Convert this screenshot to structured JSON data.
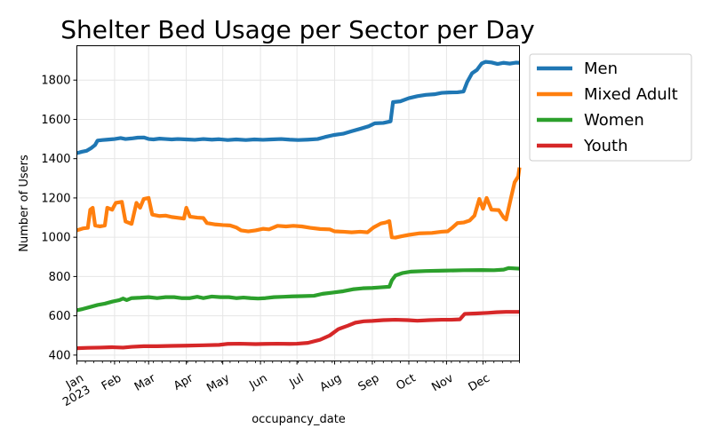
{
  "chart_data": {
    "type": "line",
    "title": "Shelter Bed Usage per Sector per Day",
    "xlabel": "occupancy_date",
    "ylabel": "Number of Users",
    "ylim": [
      370,
      1975
    ],
    "xlim": [
      "2023-01-01",
      "2023-12-31"
    ],
    "yticks": [
      400,
      600,
      800,
      1000,
      1200,
      1400,
      1600,
      1800
    ],
    "xticks": [
      {
        "date": "2023-01-01",
        "label": "Jan",
        "label2": "2023"
      },
      {
        "date": "2023-02-01",
        "label": "Feb"
      },
      {
        "date": "2023-03-01",
        "label": "Mar"
      },
      {
        "date": "2023-04-01",
        "label": "Apr"
      },
      {
        "date": "2023-05-01",
        "label": "May"
      },
      {
        "date": "2023-06-01",
        "label": "Jun"
      },
      {
        "date": "2023-07-01",
        "label": "Jul"
      },
      {
        "date": "2023-08-01",
        "label": "Aug"
      },
      {
        "date": "2023-09-01",
        "label": "Sep"
      },
      {
        "date": "2023-10-01",
        "label": "Oct"
      },
      {
        "date": "2023-11-01",
        "label": "Nov"
      },
      {
        "date": "2023-12-01",
        "label": "Dec"
      }
    ],
    "grid": true,
    "legend_position": "outside-right-top",
    "series": [
      {
        "name": "Men",
        "color": "#1f77b4",
        "points": [
          [
            "2023-01-01",
            1428
          ],
          [
            "2023-01-05",
            1435
          ],
          [
            "2023-01-09",
            1440
          ],
          [
            "2023-01-13",
            1455
          ],
          [
            "2023-01-16",
            1470
          ],
          [
            "2023-01-18",
            1492
          ],
          [
            "2023-01-22",
            1495
          ],
          [
            "2023-01-26",
            1497
          ],
          [
            "2023-02-01",
            1500
          ],
          [
            "2023-02-06",
            1505
          ],
          [
            "2023-02-10",
            1500
          ],
          [
            "2023-02-15",
            1503
          ],
          [
            "2023-02-20",
            1507
          ],
          [
            "2023-02-25",
            1508
          ],
          [
            "2023-03-01",
            1500
          ],
          [
            "2023-03-05",
            1498
          ],
          [
            "2023-03-10",
            1502
          ],
          [
            "2023-03-15",
            1500
          ],
          [
            "2023-03-20",
            1498
          ],
          [
            "2023-03-25",
            1500
          ],
          [
            "2023-04-01",
            1498
          ],
          [
            "2023-04-08",
            1496
          ],
          [
            "2023-04-15",
            1500
          ],
          [
            "2023-04-22",
            1497
          ],
          [
            "2023-04-28",
            1499
          ],
          [
            "2023-05-05",
            1495
          ],
          [
            "2023-05-12",
            1498
          ],
          [
            "2023-05-20",
            1495
          ],
          [
            "2023-05-27",
            1498
          ],
          [
            "2023-06-03",
            1496
          ],
          [
            "2023-06-10",
            1498
          ],
          [
            "2023-06-18",
            1500
          ],
          [
            "2023-06-25",
            1497
          ],
          [
            "2023-07-02",
            1495
          ],
          [
            "2023-07-10",
            1497
          ],
          [
            "2023-07-18",
            1500
          ],
          [
            "2023-07-24",
            1510
          ],
          [
            "2023-07-31",
            1520
          ],
          [
            "2023-08-08",
            1527
          ],
          [
            "2023-08-15",
            1540
          ],
          [
            "2023-08-22",
            1552
          ],
          [
            "2023-08-29",
            1565
          ],
          [
            "2023-09-03",
            1580
          ],
          [
            "2023-09-10",
            1582
          ],
          [
            "2023-09-16",
            1590
          ],
          [
            "2023-09-18",
            1688
          ],
          [
            "2023-09-24",
            1692
          ],
          [
            "2023-10-01",
            1708
          ],
          [
            "2023-10-08",
            1718
          ],
          [
            "2023-10-15",
            1725
          ],
          [
            "2023-10-22",
            1728
          ],
          [
            "2023-10-28",
            1735
          ],
          [
            "2023-11-03",
            1737
          ],
          [
            "2023-11-10",
            1738
          ],
          [
            "2023-11-15",
            1742
          ],
          [
            "2023-11-18",
            1790
          ],
          [
            "2023-11-22",
            1835
          ],
          [
            "2023-11-26",
            1852
          ],
          [
            "2023-11-30",
            1885
          ],
          [
            "2023-12-03",
            1893
          ],
          [
            "2023-12-08",
            1890
          ],
          [
            "2023-12-13",
            1882
          ],
          [
            "2023-12-18",
            1888
          ],
          [
            "2023-12-23",
            1884
          ],
          [
            "2023-12-28",
            1889
          ],
          [
            "2023-12-31",
            1888
          ]
        ]
      },
      {
        "name": "Mixed Adult",
        "color": "#ff7f0e",
        "points": [
          [
            "2023-01-01",
            1035
          ],
          [
            "2023-01-06",
            1045
          ],
          [
            "2023-01-10",
            1048
          ],
          [
            "2023-01-12",
            1140
          ],
          [
            "2023-01-14",
            1150
          ],
          [
            "2023-01-16",
            1060
          ],
          [
            "2023-01-20",
            1055
          ],
          [
            "2023-01-24",
            1060
          ],
          [
            "2023-01-26",
            1150
          ],
          [
            "2023-01-30",
            1140
          ],
          [
            "2023-02-02",
            1175
          ],
          [
            "2023-02-07",
            1180
          ],
          [
            "2023-02-10",
            1080
          ],
          [
            "2023-02-15",
            1068
          ],
          [
            "2023-02-19",
            1175
          ],
          [
            "2023-02-22",
            1150
          ],
          [
            "2023-02-25",
            1195
          ],
          [
            "2023-03-01",
            1200
          ],
          [
            "2023-03-04",
            1115
          ],
          [
            "2023-03-10",
            1108
          ],
          [
            "2023-03-15",
            1110
          ],
          [
            "2023-03-20",
            1103
          ],
          [
            "2023-03-26",
            1098
          ],
          [
            "2023-03-30",
            1095
          ],
          [
            "2023-04-01",
            1150
          ],
          [
            "2023-04-04",
            1105
          ],
          [
            "2023-04-10",
            1100
          ],
          [
            "2023-04-15",
            1098
          ],
          [
            "2023-04-18",
            1072
          ],
          [
            "2023-04-25",
            1065
          ],
          [
            "2023-05-01",
            1062
          ],
          [
            "2023-05-07",
            1060
          ],
          [
            "2023-05-12",
            1050
          ],
          [
            "2023-05-16",
            1035
          ],
          [
            "2023-05-22",
            1030
          ],
          [
            "2023-05-28",
            1035
          ],
          [
            "2023-06-03",
            1043
          ],
          [
            "2023-06-08",
            1040
          ],
          [
            "2023-06-12",
            1050
          ],
          [
            "2023-06-15",
            1058
          ],
          [
            "2023-06-22",
            1055
          ],
          [
            "2023-06-28",
            1058
          ],
          [
            "2023-07-05",
            1055
          ],
          [
            "2023-07-12",
            1048
          ],
          [
            "2023-07-20",
            1042
          ],
          [
            "2023-07-28",
            1040
          ],
          [
            "2023-08-01",
            1030
          ],
          [
            "2023-08-08",
            1028
          ],
          [
            "2023-08-15",
            1025
          ],
          [
            "2023-08-22",
            1028
          ],
          [
            "2023-08-28",
            1025
          ],
          [
            "2023-09-02",
            1050
          ],
          [
            "2023-09-08",
            1070
          ],
          [
            "2023-09-12",
            1075
          ],
          [
            "2023-09-15",
            1082
          ],
          [
            "2023-09-17",
            1000
          ],
          [
            "2023-09-20",
            998
          ],
          [
            "2023-09-25",
            1005
          ],
          [
            "2023-10-01",
            1012
          ],
          [
            "2023-10-10",
            1020
          ],
          [
            "2023-10-20",
            1022
          ],
          [
            "2023-10-28",
            1028
          ],
          [
            "2023-11-02",
            1030
          ],
          [
            "2023-11-06",
            1050
          ],
          [
            "2023-11-10",
            1072
          ],
          [
            "2023-11-15",
            1075
          ],
          [
            "2023-11-20",
            1085
          ],
          [
            "2023-11-24",
            1110
          ],
          [
            "2023-11-28",
            1195
          ],
          [
            "2023-12-01",
            1145
          ],
          [
            "2023-12-04",
            1200
          ],
          [
            "2023-12-08",
            1140
          ],
          [
            "2023-12-14",
            1138
          ],
          [
            "2023-12-18",
            1100
          ],
          [
            "2023-12-20",
            1090
          ],
          [
            "2023-12-24",
            1200
          ],
          [
            "2023-12-27",
            1280
          ],
          [
            "2023-12-30",
            1310
          ],
          [
            "2023-12-31",
            1355
          ]
        ]
      },
      {
        "name": "Women",
        "color": "#2ca02c",
        "points": [
          [
            "2023-01-01",
            628
          ],
          [
            "2023-01-06",
            635
          ],
          [
            "2023-01-12",
            645
          ],
          [
            "2023-01-18",
            655
          ],
          [
            "2023-01-24",
            662
          ],
          [
            "2023-01-30",
            672
          ],
          [
            "2023-02-05",
            680
          ],
          [
            "2023-02-08",
            688
          ],
          [
            "2023-02-11",
            680
          ],
          [
            "2023-02-15",
            690
          ],
          [
            "2023-02-22",
            692
          ],
          [
            "2023-03-01",
            695
          ],
          [
            "2023-03-08",
            690
          ],
          [
            "2023-03-15",
            695
          ],
          [
            "2023-03-22",
            695
          ],
          [
            "2023-03-28",
            690
          ],
          [
            "2023-04-04",
            690
          ],
          [
            "2023-04-10",
            697
          ],
          [
            "2023-04-15",
            690
          ],
          [
            "2023-04-22",
            698
          ],
          [
            "2023-04-29",
            695
          ],
          [
            "2023-05-06",
            695
          ],
          [
            "2023-05-12",
            690
          ],
          [
            "2023-05-18",
            693
          ],
          [
            "2023-05-24",
            690
          ],
          [
            "2023-05-30",
            688
          ],
          [
            "2023-06-05",
            690
          ],
          [
            "2023-06-12",
            695
          ],
          [
            "2023-06-20",
            697
          ],
          [
            "2023-06-27",
            699
          ],
          [
            "2023-07-05",
            700
          ],
          [
            "2023-07-15",
            702
          ],
          [
            "2023-07-22",
            712
          ],
          [
            "2023-07-30",
            718
          ],
          [
            "2023-08-08",
            725
          ],
          [
            "2023-08-16",
            735
          ],
          [
            "2023-08-24",
            740
          ],
          [
            "2023-09-01",
            742
          ],
          [
            "2023-09-08",
            745
          ],
          [
            "2023-09-15",
            748
          ],
          [
            "2023-09-17",
            780
          ],
          [
            "2023-09-20",
            805
          ],
          [
            "2023-09-26",
            818
          ],
          [
            "2023-10-03",
            825
          ],
          [
            "2023-10-15",
            828
          ],
          [
            "2023-10-30",
            830
          ],
          [
            "2023-11-15",
            832
          ],
          [
            "2023-11-30",
            833
          ],
          [
            "2023-12-10",
            832
          ],
          [
            "2023-12-18",
            835
          ],
          [
            "2023-12-22",
            843
          ],
          [
            "2023-12-31",
            840
          ]
        ]
      },
      {
        "name": "Youth",
        "color": "#d62728",
        "points": [
          [
            "2023-01-01",
            435
          ],
          [
            "2023-01-10",
            437
          ],
          [
            "2023-01-20",
            438
          ],
          [
            "2023-01-30",
            440
          ],
          [
            "2023-02-08",
            438
          ],
          [
            "2023-02-15",
            442
          ],
          [
            "2023-02-25",
            445
          ],
          [
            "2023-03-08",
            445
          ],
          [
            "2023-03-20",
            447
          ],
          [
            "2023-04-01",
            448
          ],
          [
            "2023-04-15",
            450
          ],
          [
            "2023-04-28",
            452
          ],
          [
            "2023-05-05",
            457
          ],
          [
            "2023-05-15",
            458
          ],
          [
            "2023-05-28",
            456
          ],
          [
            "2023-06-05",
            457
          ],
          [
            "2023-06-15",
            458
          ],
          [
            "2023-06-25",
            457
          ],
          [
            "2023-07-01",
            458
          ],
          [
            "2023-07-10",
            462
          ],
          [
            "2023-07-20",
            478
          ],
          [
            "2023-07-28",
            500
          ],
          [
            "2023-08-04",
            532
          ],
          [
            "2023-08-12",
            550
          ],
          [
            "2023-08-18",
            565
          ],
          [
            "2023-08-25",
            572
          ],
          [
            "2023-09-01",
            574
          ],
          [
            "2023-09-10",
            578
          ],
          [
            "2023-09-20",
            580
          ],
          [
            "2023-09-30",
            578
          ],
          [
            "2023-10-08",
            575
          ],
          [
            "2023-10-18",
            578
          ],
          [
            "2023-10-28",
            580
          ],
          [
            "2023-11-05",
            580
          ],
          [
            "2023-11-12",
            582
          ],
          [
            "2023-11-16",
            610
          ],
          [
            "2023-11-25",
            612
          ],
          [
            "2023-12-05",
            615
          ],
          [
            "2023-12-12",
            618
          ],
          [
            "2023-12-20",
            620
          ],
          [
            "2023-12-31",
            620
          ]
        ]
      }
    ]
  }
}
